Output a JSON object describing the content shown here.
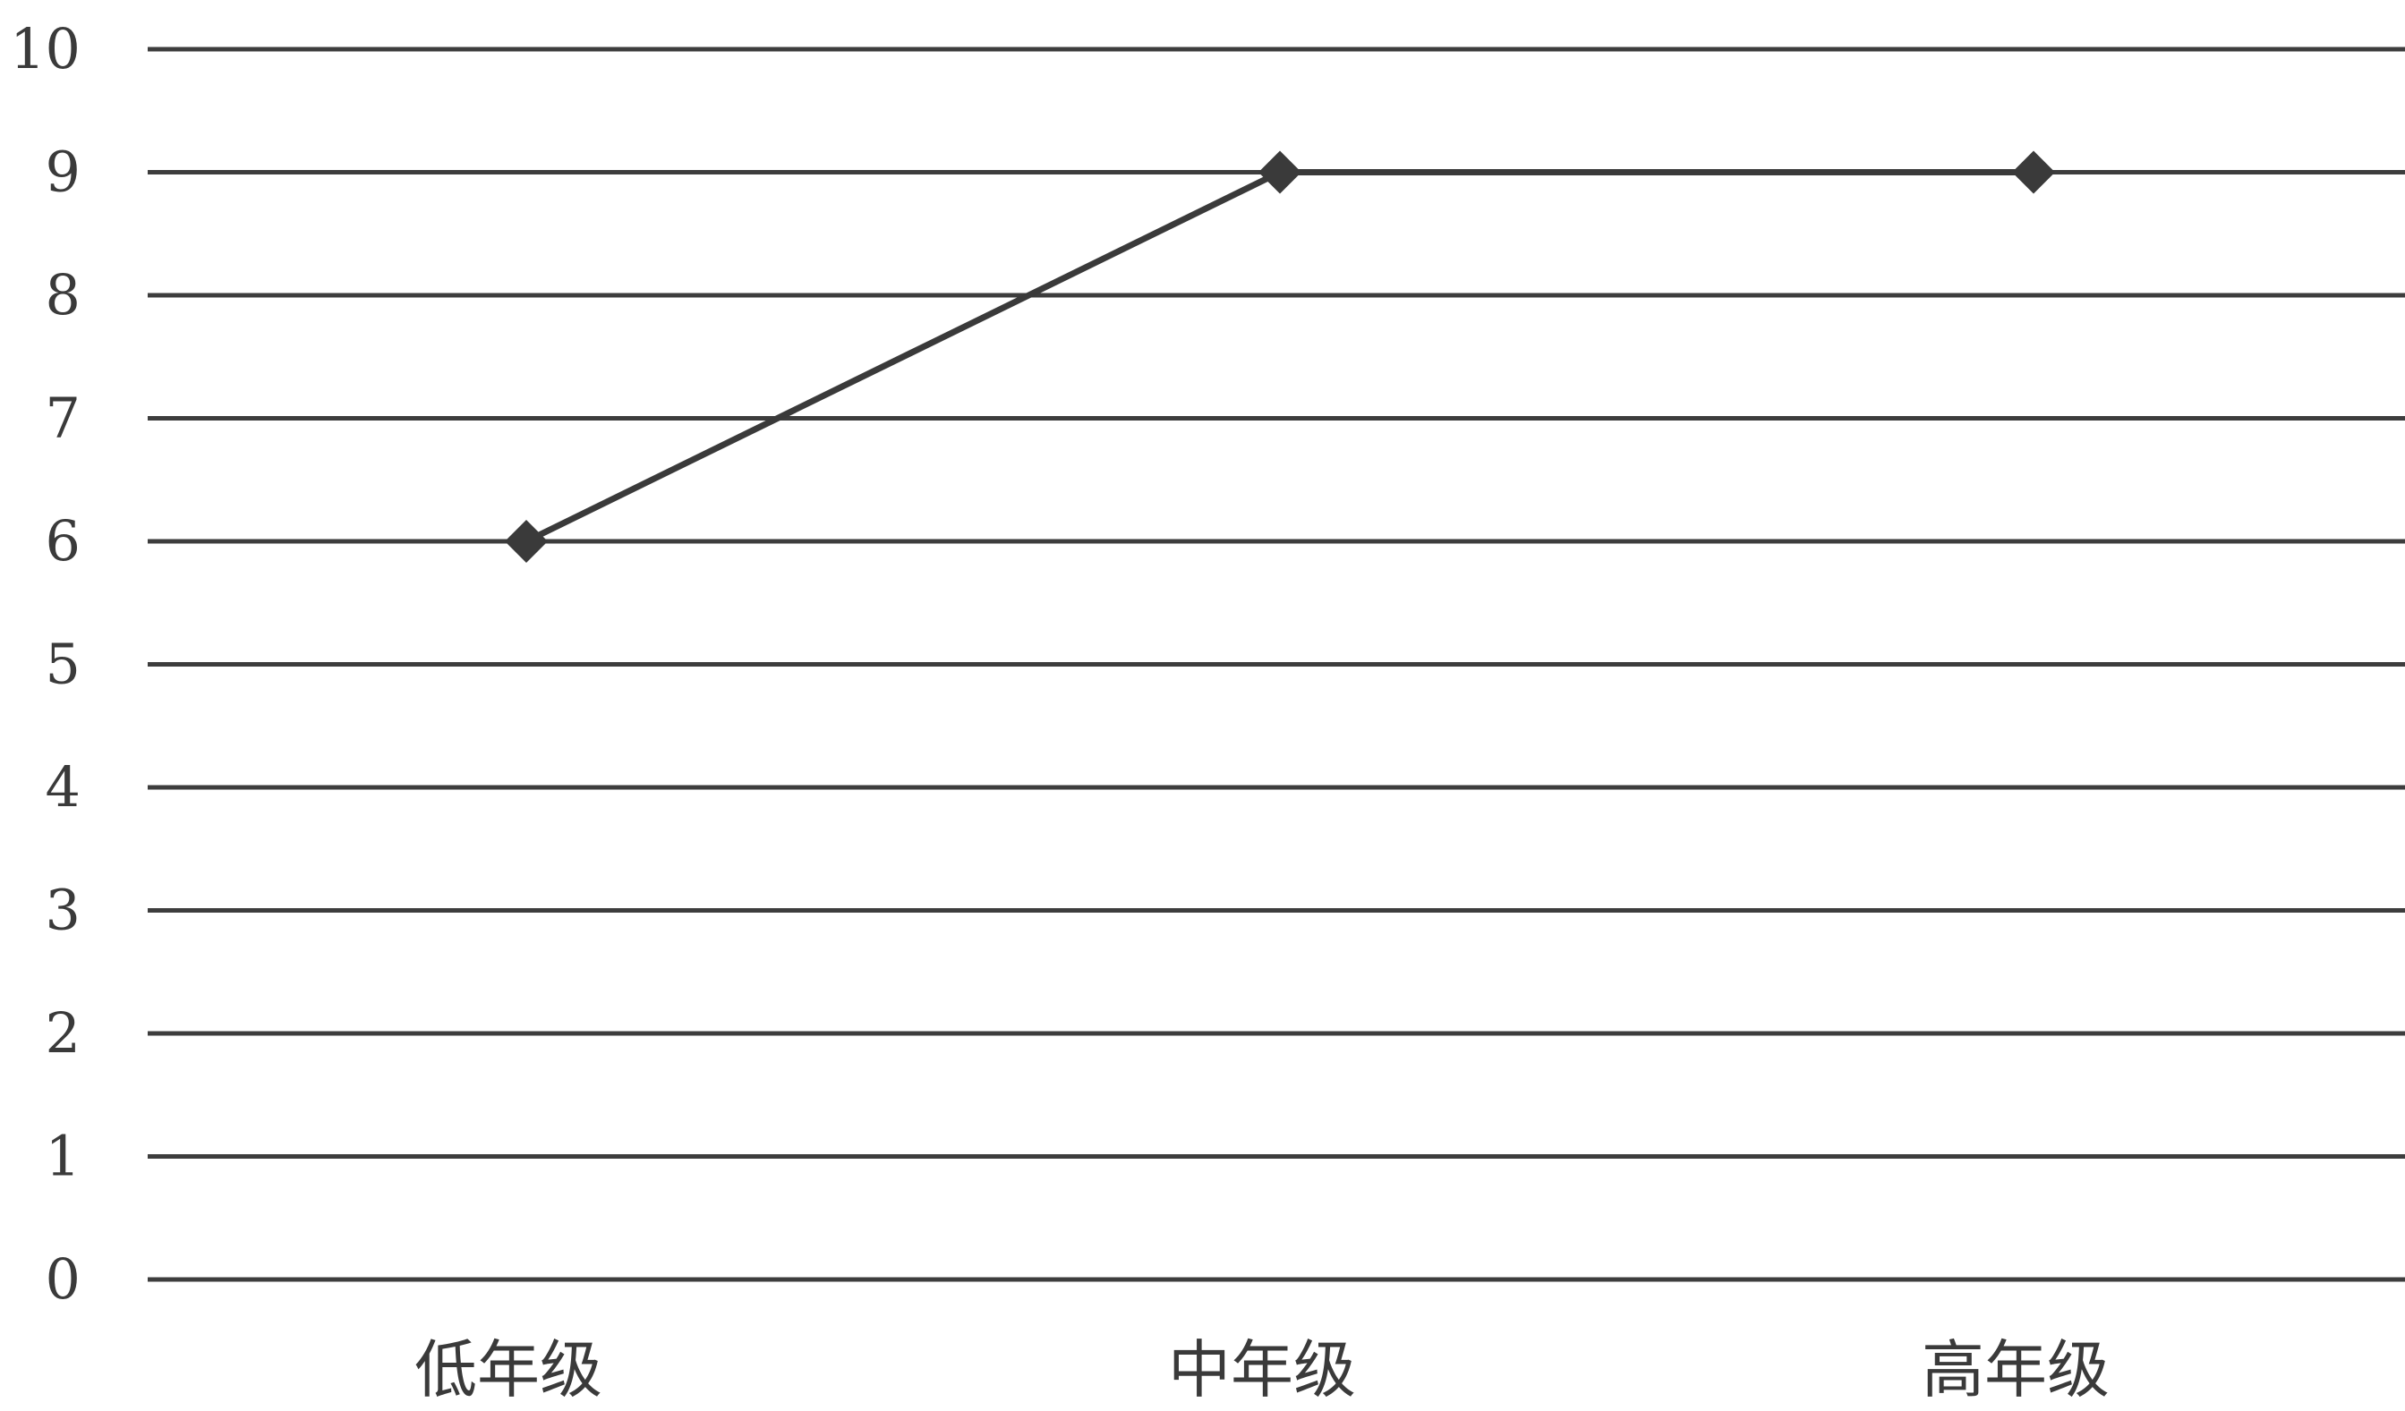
{
  "chart_data": {
    "type": "line",
    "categories": [
      "低年级",
      "中年级",
      "高年级"
    ],
    "values": [
      6,
      9,
      9
    ],
    "title": "",
    "xlabel": "",
    "ylabel": "",
    "ylim": [
      0,
      10
    ],
    "yticks": [
      "0",
      "1",
      "2",
      "3",
      "4",
      "5",
      "6",
      "7",
      "8",
      "9",
      "10"
    ],
    "grid": true,
    "legend": "none",
    "marker": "diamond",
    "colors": {
      "line": "#3a3a3a",
      "grid": "#3d3d3d",
      "text": "#3a3a3a"
    }
  }
}
